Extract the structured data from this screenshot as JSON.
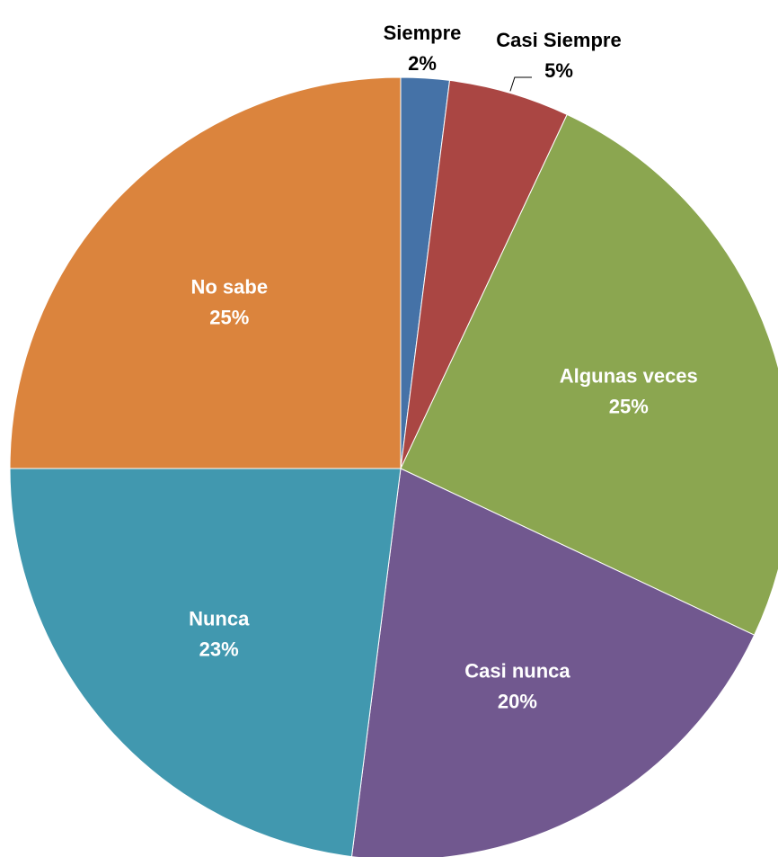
{
  "chart_data": {
    "type": "pie",
    "title": "",
    "start": "top",
    "direction": "clockwise",
    "legend": "none",
    "slices": [
      {
        "label": "Siempre",
        "value": 2,
        "value_label": "2%",
        "color": "#4572A7",
        "label_color": "#000000"
      },
      {
        "label": "Casi Siempre",
        "value": 5,
        "value_label": "5%",
        "color": "#AA4643",
        "label_color": "#000000"
      },
      {
        "label": "Algunas veces",
        "value": 25,
        "value_label": "25%",
        "color": "#8BA650",
        "label_color": "#ffffff"
      },
      {
        "label": "Casi nunca",
        "value": 20,
        "value_label": "20%",
        "color": "#71588F",
        "label_color": "#ffffff"
      },
      {
        "label": "Nunca",
        "value": 23,
        "value_label": "23%",
        "color": "#4198AF",
        "label_color": "#ffffff"
      },
      {
        "label": "No sabe",
        "value": 25,
        "value_label": "25%",
        "color": "#DB843D",
        "label_color": "#ffffff"
      }
    ]
  }
}
